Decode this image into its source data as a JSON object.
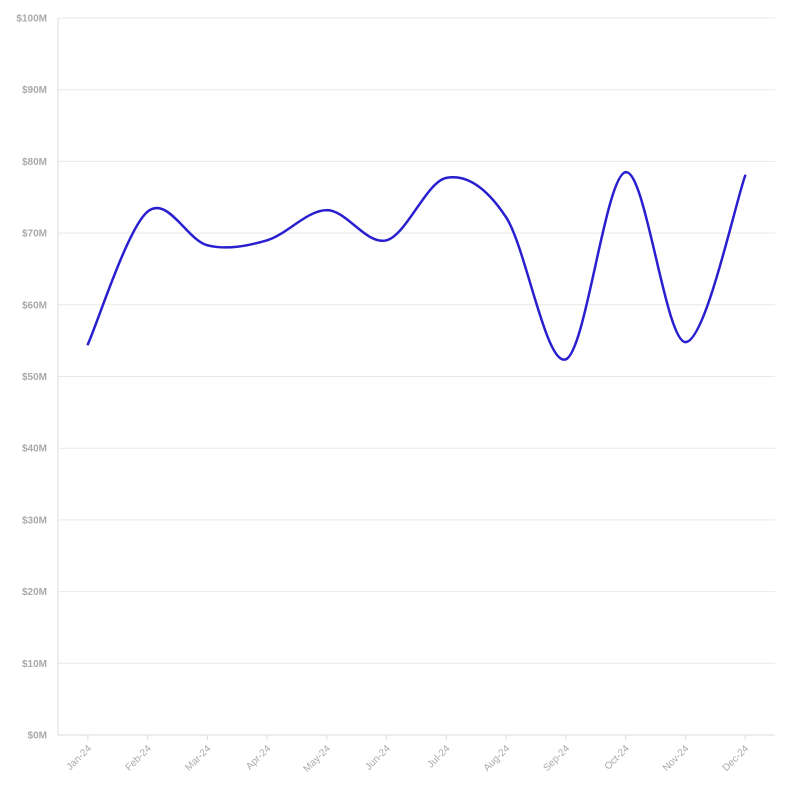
{
  "chart_data": {
    "type": "line",
    "categories": [
      "Jan-24",
      "Feb-24",
      "Mar-24",
      "Apr-24",
      "May-24",
      "Jun-24",
      "Jul-24",
      "Aug-24",
      "Sep-24",
      "Oct-24",
      "Nov-24",
      "Dec-24"
    ],
    "series": [
      {
        "values": [
          54.5,
          73.0,
          68.3,
          69.0,
          73.2,
          69.0,
          77.7,
          72.2,
          52.4,
          78.5,
          54.8,
          78.0
        ]
      }
    ],
    "yticks": [
      "$0M",
      "$10M",
      "$20M",
      "$30M",
      "$40M",
      "$50M",
      "$60M",
      "$70M",
      "$80M",
      "$90M",
      "$100M"
    ],
    "ylim": [
      0,
      100
    ],
    "grid": true,
    "colors": {
      "line": "#2a1fcf",
      "grid": "#e9e9e9",
      "tick_text": "#a9a9a9"
    }
  }
}
